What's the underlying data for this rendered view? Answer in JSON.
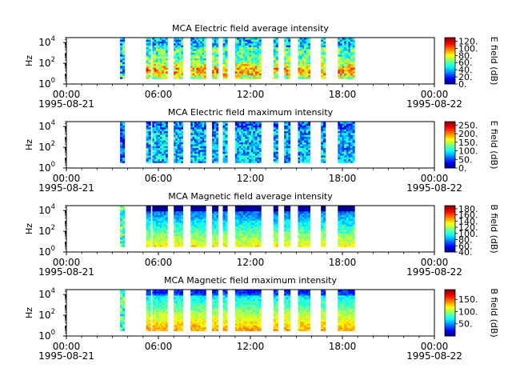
{
  "figure": {
    "time_ticks": [
      "00:00",
      "06:00",
      "12:00",
      "18:00",
      "00:00"
    ],
    "start_date": "1995-08-21",
    "end_date": "1995-08-22",
    "y_tick_labels": [
      "10",
      "10",
      "10"
    ],
    "y_tick_exponents": [
      "0",
      "2",
      "4"
    ],
    "ylabel": "Hz"
  },
  "chart_data": [
    {
      "type": "heatmap",
      "title": "MCA  Electric field average intensity",
      "ylabel": "Hz",
      "yscale": "log",
      "ylim": [
        1,
        30000
      ],
      "xlim": [
        "1995-08-21 00:00",
        "1995-08-22 00:00"
      ],
      "colorbar": {
        "label": "E field (dB)",
        "ticks": [
          "120.",
          "100.",
          "80.",
          "60.",
          "40.",
          "20.",
          "0."
        ],
        "range": [
          0,
          130
        ]
      },
      "data_segments": [
        [
          3.5,
          3.8
        ],
        [
          5.2,
          5.5
        ],
        [
          5.6,
          6.6
        ],
        [
          7.0,
          7.6
        ],
        [
          8.1,
          9.1
        ],
        [
          9.5,
          9.9
        ],
        [
          10.2,
          10.5
        ],
        [
          11.0,
          12.7
        ],
        [
          13.5,
          13.8
        ],
        [
          14.2,
          14.6
        ],
        [
          15.1,
          15.9
        ],
        [
          16.6,
          16.9
        ],
        [
          17.7,
          18.8
        ]
      ]
    },
    {
      "type": "heatmap",
      "title": "MCA  Electric field maximum intensity",
      "ylabel": "Hz",
      "yscale": "log",
      "ylim": [
        1,
        30000
      ],
      "xlim": [
        "1995-08-21 00:00",
        "1995-08-22 00:00"
      ],
      "colorbar": {
        "label": "E field (dB)",
        "ticks": [
          "250.",
          "200.",
          "150.",
          "100.",
          "50.",
          "0."
        ],
        "range": [
          0,
          270
        ]
      },
      "data_segments": [
        [
          3.5,
          3.8
        ],
        [
          5.2,
          5.5
        ],
        [
          5.6,
          6.6
        ],
        [
          7.0,
          7.6
        ],
        [
          8.1,
          9.1
        ],
        [
          9.5,
          9.9
        ],
        [
          10.2,
          10.5
        ],
        [
          11.0,
          12.7
        ],
        [
          13.5,
          13.8
        ],
        [
          14.2,
          14.6
        ],
        [
          15.1,
          15.9
        ],
        [
          16.6,
          16.9
        ],
        [
          17.7,
          18.8
        ]
      ]
    },
    {
      "type": "heatmap",
      "title": "MCA  Magnetic field average intensity",
      "ylabel": "Hz",
      "yscale": "log",
      "ylim": [
        1,
        30000
      ],
      "xlim": [
        "1995-08-21 00:00",
        "1995-08-22 00:00"
      ],
      "colorbar": {
        "label": "B field (dB)",
        "ticks": [
          "180.",
          "160.",
          "140.",
          "120.",
          "100.",
          "80.",
          "60.",
          "40."
        ],
        "range": [
          40,
          190
        ]
      },
      "data_segments": [
        [
          3.5,
          3.8
        ],
        [
          5.2,
          5.5
        ],
        [
          5.6,
          6.6
        ],
        [
          7.0,
          7.6
        ],
        [
          8.1,
          9.1
        ],
        [
          9.5,
          9.9
        ],
        [
          10.2,
          10.5
        ],
        [
          11.0,
          12.7
        ],
        [
          13.5,
          13.8
        ],
        [
          14.2,
          14.6
        ],
        [
          15.1,
          15.9
        ],
        [
          16.6,
          16.9
        ],
        [
          17.7,
          18.8
        ]
      ]
    },
    {
      "type": "heatmap",
      "title": "MCA  Magnetic field maximum intensity",
      "ylabel": "Hz",
      "yscale": "log",
      "ylim": [
        1,
        30000
      ],
      "xlim": [
        "1995-08-21 00:00",
        "1995-08-22 00:00"
      ],
      "colorbar": {
        "label": "B field (dB)",
        "ticks": [
          "150.",
          "100.",
          "50."
        ],
        "range": [
          0,
          190
        ]
      },
      "data_segments": [
        [
          3.5,
          3.8
        ],
        [
          5.2,
          5.5
        ],
        [
          5.6,
          6.6
        ],
        [
          7.0,
          7.6
        ],
        [
          8.1,
          9.1
        ],
        [
          9.5,
          9.9
        ],
        [
          10.2,
          10.5
        ],
        [
          11.0,
          12.7
        ],
        [
          13.5,
          13.8
        ],
        [
          14.2,
          14.6
        ],
        [
          15.1,
          15.9
        ],
        [
          16.6,
          16.9
        ],
        [
          17.7,
          18.8
        ]
      ]
    }
  ]
}
